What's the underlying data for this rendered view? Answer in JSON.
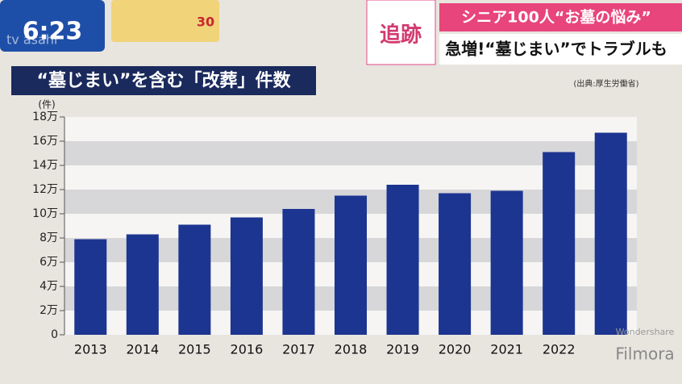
{
  "screen": {
    "clock": "6:23",
    "channel": "tv asahi",
    "temperature": "30",
    "corner_tag": "追跡",
    "headline_top": "シニア100人“お墓の悩み”",
    "headline_main": "急増!“墓じまい”でトラブルも",
    "watermark_small": "Wondershare",
    "watermark": "Filmora"
  },
  "chart_data": {
    "type": "bar",
    "title": "“墓じまい”を含む「改葬」件数",
    "source": "(出典:厚生労働省)",
    "y_label": "(件)",
    "categories": [
      "2013",
      "2014",
      "2015",
      "2016",
      "2017",
      "2018",
      "2019",
      "2020",
      "2021",
      "2022",
      null
    ],
    "values": [
      79000,
      83000,
      91000,
      97000,
      104000,
      115000,
      124000,
      117000,
      119000,
      151000,
      167000
    ],
    "color": "#1c3591",
    "ylim": [
      0,
      180000
    ],
    "yticks": [
      0,
      {
        "value": 20000,
        "label": "2万"
      },
      {
        "value": 40000,
        "label": "4万"
      },
      {
        "value": 60000,
        "label": "6万"
      },
      {
        "value": 80000,
        "label": "8万"
      },
      {
        "value": 100000,
        "label": "10万"
      },
      {
        "value": 120000,
        "label": "12万"
      },
      {
        "value": 140000,
        "label": "14万"
      },
      {
        "value": 160000,
        "label": "16万"
      },
      {
        "value": 180000,
        "label": "18万"
      }
    ],
    "grid": true
  }
}
